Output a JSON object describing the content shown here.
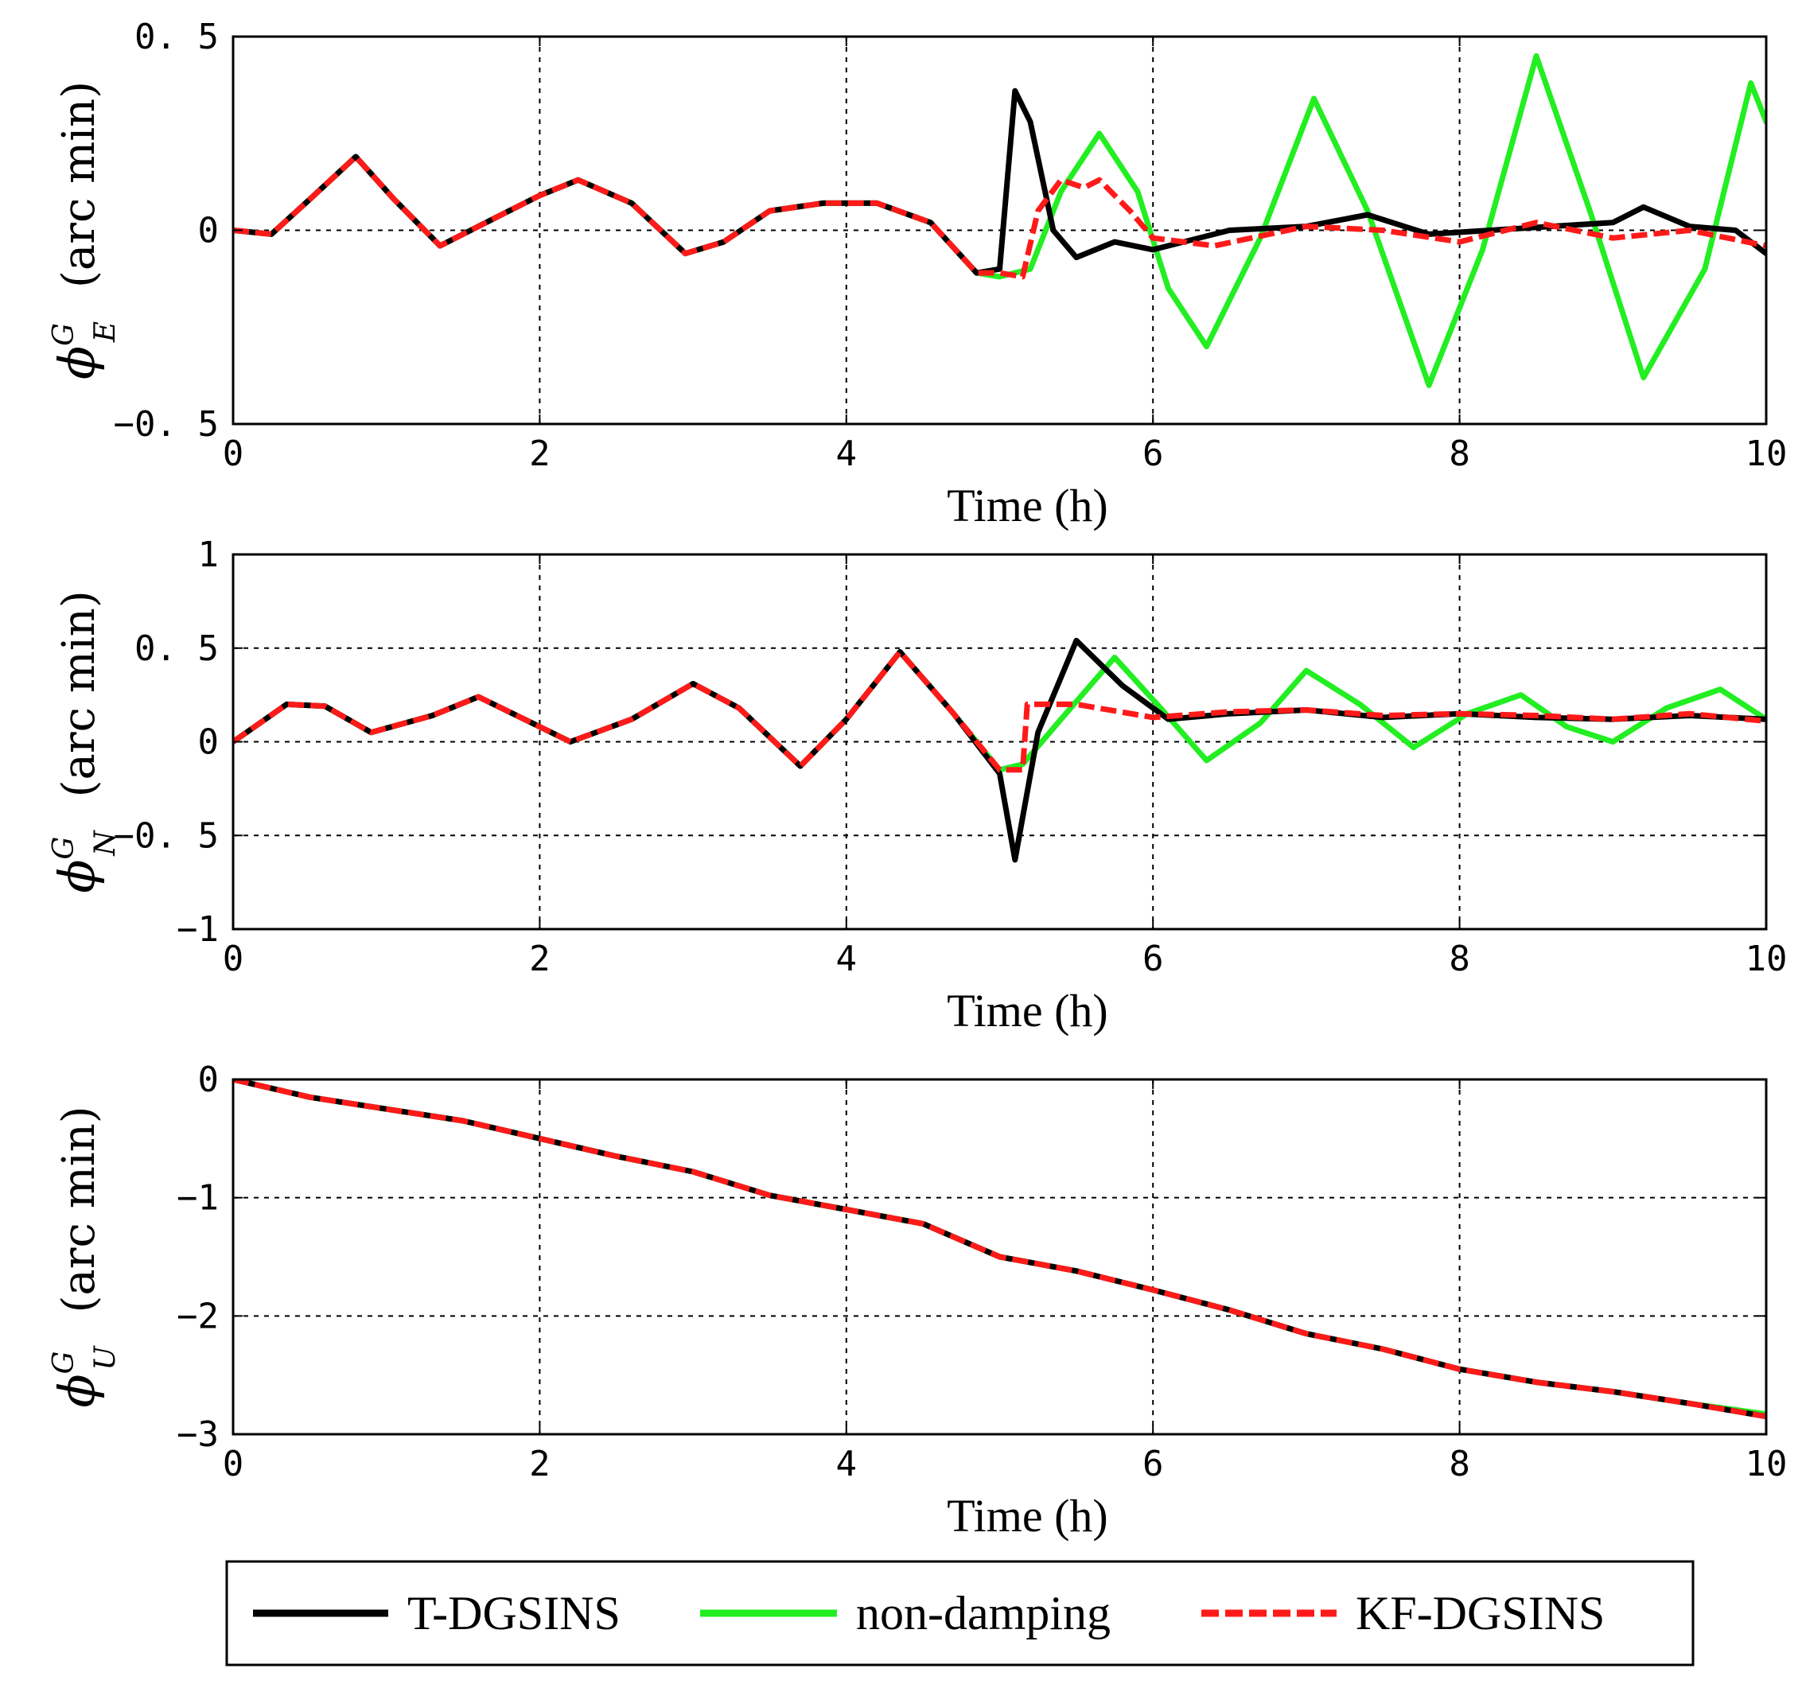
{
  "chart_data": [
    {
      "type": "line",
      "id": "phi-E",
      "xlabel": "Time (h)",
      "ylabel": {
        "symbol": "ϕ",
        "sup": "G",
        "sub": "E",
        "unit": "(arc min)"
      },
      "xlim": [
        0,
        10
      ],
      "ylim": [
        -0.5,
        0.5
      ],
      "xticks": [
        0,
        2,
        4,
        6,
        8,
        10
      ],
      "xtick_labels": [
        "0",
        "2",
        "4",
        "6",
        "8",
        "10"
      ],
      "yticks": [
        -0.5,
        0,
        0.5
      ],
      "ytick_labels": [
        "−0. 5",
        "0",
        "0. 5"
      ],
      "grid": true,
      "series": [
        {
          "name": "T-DGSINS",
          "x": [
            0,
            0.25,
            0.5,
            0.8,
            1.05,
            1.35,
            1.6,
            2.0,
            2.25,
            2.6,
            2.95,
            3.2,
            3.5,
            3.85,
            4.2,
            4.55,
            4.85,
            5.0,
            5.1,
            5.2,
            5.35,
            5.5,
            5.75,
            6.0,
            6.5,
            7.0,
            7.4,
            7.8,
            8.2,
            8.6,
            9.0,
            9.2,
            9.5,
            9.8,
            10.0
          ],
          "y": [
            0,
            -0.01,
            0.08,
            0.19,
            0.08,
            -0.04,
            0.01,
            0.09,
            0.13,
            0.07,
            -0.06,
            -0.03,
            0.05,
            0.07,
            0.07,
            0.02,
            -0.11,
            -0.1,
            0.36,
            0.28,
            0.0,
            -0.07,
            -0.03,
            -0.05,
            0.0,
            0.01,
            0.04,
            -0.01,
            0.0,
            0.01,
            0.02,
            0.06,
            0.01,
            0.0,
            -0.06
          ]
        },
        {
          "name": "non-damping",
          "x": [
            0,
            0.25,
            0.5,
            0.8,
            1.05,
            1.35,
            1.6,
            2.0,
            2.25,
            2.6,
            2.95,
            3.2,
            3.5,
            3.85,
            4.2,
            4.55,
            4.85,
            5.0,
            5.2,
            5.4,
            5.65,
            5.9,
            6.1,
            6.35,
            6.7,
            7.05,
            7.4,
            7.8,
            8.15,
            8.5,
            8.85,
            9.2,
            9.6,
            9.9,
            10.0
          ],
          "y": [
            0,
            -0.01,
            0.08,
            0.19,
            0.08,
            -0.04,
            0.01,
            0.09,
            0.13,
            0.07,
            -0.06,
            -0.03,
            0.05,
            0.07,
            0.07,
            0.02,
            -0.11,
            -0.12,
            -0.1,
            0.1,
            0.25,
            0.1,
            -0.15,
            -0.3,
            -0.02,
            0.34,
            0.05,
            -0.4,
            -0.05,
            0.45,
            0.05,
            -0.38,
            -0.1,
            0.38,
            0.28
          ]
        },
        {
          "name": "KF-DGSINS",
          "x": [
            0,
            0.25,
            0.5,
            0.8,
            1.05,
            1.35,
            1.6,
            2.0,
            2.25,
            2.6,
            2.95,
            3.2,
            3.5,
            3.85,
            4.2,
            4.55,
            4.85,
            5.0,
            5.15,
            5.25,
            5.4,
            5.55,
            5.65,
            5.85,
            6.0,
            6.4,
            7.0,
            7.5,
            8.0,
            8.5,
            9.0,
            9.5,
            10.0
          ],
          "y": [
            0,
            -0.01,
            0.08,
            0.19,
            0.08,
            -0.04,
            0.01,
            0.09,
            0.13,
            0.07,
            -0.06,
            -0.03,
            0.05,
            0.07,
            0.07,
            0.02,
            -0.11,
            -0.11,
            -0.12,
            0.05,
            0.13,
            0.11,
            0.13,
            0.05,
            -0.02,
            -0.04,
            0.01,
            0.0,
            -0.03,
            0.02,
            -0.02,
            0.0,
            -0.04
          ]
        }
      ]
    },
    {
      "type": "line",
      "id": "phi-N",
      "xlabel": "Time (h)",
      "ylabel": {
        "symbol": "ϕ",
        "sup": "G",
        "sub": "N",
        "unit": "(arc min)"
      },
      "xlim": [
        0,
        10
      ],
      "ylim": [
        -1,
        1
      ],
      "xticks": [
        0,
        2,
        4,
        6,
        8,
        10
      ],
      "xtick_labels": [
        "0",
        "2",
        "4",
        "6",
        "8",
        "10"
      ],
      "yticks": [
        -1,
        -0.5,
        0,
        0.5,
        1
      ],
      "ytick_labels": [
        "−1",
        "−0. 5",
        "0",
        "0. 5",
        "1"
      ],
      "grid": true,
      "series": [
        {
          "name": "T-DGSINS",
          "x": [
            0,
            0.35,
            0.6,
            0.9,
            1.3,
            1.6,
            1.9,
            2.2,
            2.6,
            3.0,
            3.3,
            3.7,
            4.0,
            4.35,
            4.7,
            5.0,
            5.1,
            5.25,
            5.5,
            5.8,
            6.1,
            6.5,
            7.0,
            7.5,
            8.0,
            8.5,
            9.0,
            9.5,
            10.0
          ],
          "y": [
            0,
            0.2,
            0.19,
            0.05,
            0.14,
            0.24,
            0.12,
            0.0,
            0.12,
            0.31,
            0.18,
            -0.13,
            0.12,
            0.48,
            0.15,
            -0.17,
            -0.63,
            0.05,
            0.54,
            0.3,
            0.12,
            0.15,
            0.17,
            0.13,
            0.15,
            0.13,
            0.12,
            0.14,
            0.12
          ]
        },
        {
          "name": "non-damping",
          "x": [
            0,
            0.35,
            0.6,
            0.9,
            1.3,
            1.6,
            1.9,
            2.2,
            2.6,
            3.0,
            3.3,
            3.7,
            4.0,
            4.35,
            4.7,
            5.0,
            5.15,
            5.4,
            5.75,
            6.05,
            6.35,
            6.7,
            7.0,
            7.35,
            7.7,
            8.05,
            8.4,
            8.7,
            9.0,
            9.35,
            9.7,
            10.0
          ],
          "y": [
            0,
            0.2,
            0.19,
            0.05,
            0.14,
            0.24,
            0.12,
            0.0,
            0.12,
            0.31,
            0.18,
            -0.13,
            0.12,
            0.48,
            0.15,
            -0.15,
            -0.12,
            0.12,
            0.45,
            0.18,
            -0.1,
            0.1,
            0.38,
            0.2,
            -0.03,
            0.15,
            0.25,
            0.08,
            0.0,
            0.18,
            0.28,
            0.12
          ]
        },
        {
          "name": "KF-DGSINS",
          "x": [
            0,
            0.35,
            0.6,
            0.9,
            1.3,
            1.6,
            1.9,
            2.2,
            2.6,
            3.0,
            3.3,
            3.7,
            4.0,
            4.35,
            4.7,
            5.0,
            5.15,
            5.18,
            5.5,
            6.0,
            6.5,
            7.0,
            7.5,
            8.0,
            8.5,
            9.0,
            9.5,
            10.0
          ],
          "y": [
            0,
            0.2,
            0.19,
            0.05,
            0.14,
            0.24,
            0.12,
            0.0,
            0.12,
            0.31,
            0.18,
            -0.13,
            0.12,
            0.48,
            0.15,
            -0.15,
            -0.15,
            0.2,
            0.2,
            0.13,
            0.16,
            0.17,
            0.14,
            0.15,
            0.14,
            0.12,
            0.15,
            0.11
          ]
        }
      ]
    },
    {
      "type": "line",
      "id": "phi-U",
      "xlabel": "Time (h)",
      "ylabel": {
        "symbol": "ϕ",
        "sup": "G",
        "sub": "U",
        "unit": "(arc min)"
      },
      "xlim": [
        0,
        10
      ],
      "ylim": [
        -3,
        0
      ],
      "xticks": [
        0,
        2,
        4,
        6,
        8,
        10
      ],
      "xtick_labels": [
        "0",
        "2",
        "4",
        "6",
        "8",
        "10"
      ],
      "yticks": [
        -3,
        -2,
        -1,
        0
      ],
      "ytick_labels": [
        "−3",
        "−2",
        "−1",
        "0"
      ],
      "grid": true,
      "series": [
        {
          "name": "T-DGSINS",
          "x": [
            0,
            0.5,
            1.0,
            1.5,
            2.0,
            2.5,
            3.0,
            3.5,
            4.0,
            4.5,
            5.0,
            5.5,
            6.0,
            6.5,
            7.0,
            7.5,
            8.0,
            8.5,
            9.0,
            9.5,
            10.0
          ],
          "y": [
            0,
            -0.15,
            -0.25,
            -0.35,
            -0.5,
            -0.65,
            -0.78,
            -0.98,
            -1.1,
            -1.22,
            -1.5,
            -1.62,
            -1.78,
            -1.95,
            -2.15,
            -2.28,
            -2.45,
            -2.56,
            -2.64,
            -2.74,
            -2.85
          ]
        },
        {
          "name": "non-damping",
          "x": [
            0,
            0.5,
            1.0,
            1.5,
            2.0,
            2.5,
            3.0,
            3.5,
            4.0,
            4.5,
            5.0,
            5.5,
            6.0,
            6.5,
            7.0,
            7.5,
            8.0,
            8.5,
            9.0,
            9.5,
            10.0
          ],
          "y": [
            0,
            -0.15,
            -0.25,
            -0.35,
            -0.5,
            -0.65,
            -0.78,
            -0.98,
            -1.1,
            -1.22,
            -1.5,
            -1.62,
            -1.78,
            -1.95,
            -2.15,
            -2.28,
            -2.45,
            -2.56,
            -2.64,
            -2.74,
            -2.83
          ]
        },
        {
          "name": "KF-DGSINS",
          "x": [
            0,
            0.5,
            1.0,
            1.5,
            2.0,
            2.5,
            3.0,
            3.5,
            4.0,
            4.5,
            5.0,
            5.5,
            6.0,
            6.5,
            7.0,
            7.5,
            8.0,
            8.5,
            9.0,
            9.5,
            10.0
          ],
          "y": [
            0,
            -0.15,
            -0.25,
            -0.35,
            -0.5,
            -0.65,
            -0.78,
            -0.98,
            -1.1,
            -1.22,
            -1.5,
            -1.62,
            -1.78,
            -1.95,
            -2.15,
            -2.28,
            -2.45,
            -2.56,
            -2.64,
            -2.74,
            -2.85
          ]
        }
      ]
    }
  ],
  "legend": {
    "placement": "bottom-center",
    "entries": [
      {
        "name": "T-DGSINS",
        "color": "#000000",
        "style": "solid"
      },
      {
        "name": "non-damping",
        "color": "#22ee22",
        "style": "solid"
      },
      {
        "name": "KF-DGSINS",
        "color": "#ff1a1a",
        "style": "dashed"
      }
    ]
  }
}
